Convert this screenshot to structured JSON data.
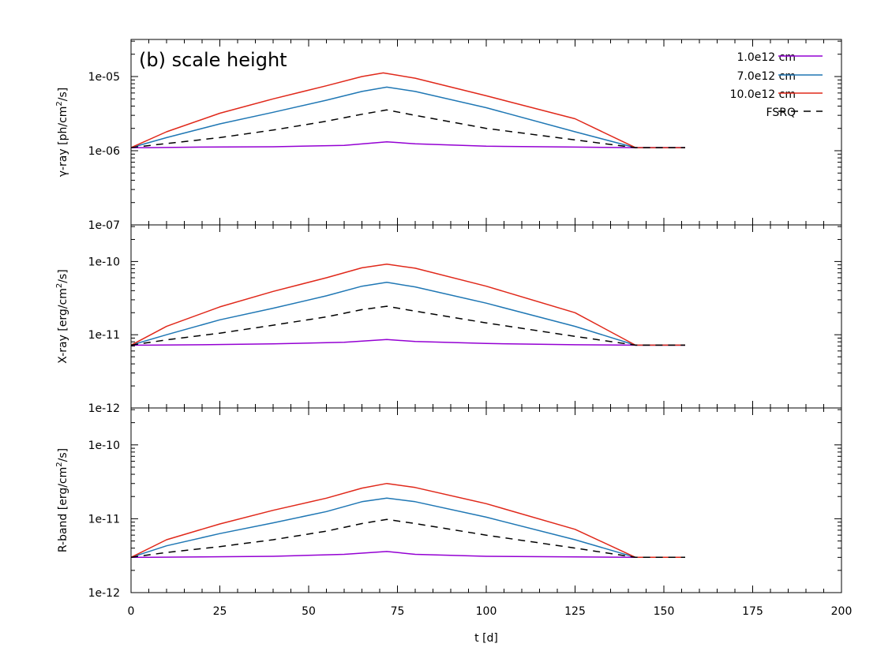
{
  "chart_data": {
    "type": "line",
    "annotation": "(b) scale height",
    "xlabel": "t [d]",
    "xlim": [
      0,
      200
    ],
    "xticks": [
      "0",
      "25",
      "50",
      "75",
      "100",
      "125",
      "150",
      "175",
      "200"
    ],
    "legend": {
      "position": "top-right",
      "entries": [
        {
          "label": "1.0e12 cm",
          "color": "#9400d3",
          "dash": "solid"
        },
        {
          "label": "7.0e12 cm",
          "color": "#1f77b4",
          "dash": "solid"
        },
        {
          "label": "10.0e12 cm",
          "color": "#e0281a",
          "dash": "solid"
        },
        {
          "label": "FSRQ",
          "color": "#000000",
          "dash": "dashed"
        }
      ]
    },
    "panels": [
      {
        "name": "gamma",
        "ylabel_main": "γ-ray [ph/cm",
        "ylabel_sup": "2",
        "ylabel_tail": "/s]",
        "ylim_exp": [
          -7,
          -4.5
        ],
        "yticks": [
          "1e-05",
          "1e-06",
          "1e-07"
        ],
        "series": [
          {
            "name": "1.0e12 cm",
            "t": [
              0,
              5,
              20,
              40,
              60,
              72,
              80,
              100,
              125,
              142,
              156
            ],
            "values": [
              1.1e-06,
              1.1e-06,
              1.12e-06,
              1.13e-06,
              1.18e-06,
              1.32e-06,
              1.24e-06,
              1.15e-06,
              1.12e-06,
              1.1e-06,
              1.1e-06
            ]
          },
          {
            "name": "7.0e12 cm",
            "t": [
              0,
              10,
              25,
              40,
              55,
              65,
              72,
              80,
              100,
              125,
              142,
              156
            ],
            "values": [
              1.1e-06,
              1.5e-06,
              2.3e-06,
              3.3e-06,
              4.8e-06,
              6.3e-06,
              7.2e-06,
              6.3e-06,
              3.8e-06,
              1.8e-06,
              1.1e-06,
              1.1e-06
            ]
          },
          {
            "name": "10.0e12 cm",
            "t": [
              0,
              10,
              25,
              40,
              55,
              65,
              71,
              80,
              100,
              125,
              142,
              156
            ],
            "values": [
              1.1e-06,
              1.8e-06,
              3.2e-06,
              5e-06,
              7.5e-06,
              1e-05,
              1.12e-05,
              9.5e-06,
              5.5e-06,
              2.7e-06,
              1.1e-06,
              1.1e-06
            ]
          },
          {
            "name": "FSRQ",
            "t": [
              0,
              10,
              25,
              40,
              55,
              65,
              72,
              80,
              100,
              125,
              142,
              156
            ],
            "values": [
              1.1e-06,
              1.25e-06,
              1.5e-06,
              1.9e-06,
              2.5e-06,
              3.1e-06,
              3.55e-06,
              3e-06,
              2e-06,
              1.4e-06,
              1.1e-06,
              1.1e-06
            ]
          }
        ]
      },
      {
        "name": "xray",
        "ylabel_main": "X-ray [erg/cm",
        "ylabel_sup": "2",
        "ylabel_tail": "/s]",
        "ylim_exp": [
          -12,
          -9.5
        ],
        "yticks": [
          "1e-10",
          "1e-11",
          "1e-12"
        ],
        "series": [
          {
            "name": "1.0e12 cm",
            "t": [
              0,
              5,
              20,
              40,
              60,
              72,
              80,
              100,
              125,
              142,
              156
            ],
            "values": [
              7.2e-12,
              7.2e-12,
              7.3e-12,
              7.5e-12,
              7.9e-12,
              8.6e-12,
              8.1e-12,
              7.6e-12,
              7.3e-12,
              7.2e-12,
              7.2e-12
            ]
          },
          {
            "name": "7.0e12 cm",
            "t": [
              0,
              10,
              25,
              40,
              55,
              65,
              72,
              80,
              100,
              125,
              142,
              156
            ],
            "values": [
              7.2e-12,
              1e-11,
              1.6e-11,
              2.3e-11,
              3.4e-11,
              4.6e-11,
              5.2e-11,
              4.5e-11,
              2.7e-11,
              1.3e-11,
              7.2e-12,
              7.2e-12
            ]
          },
          {
            "name": "10.0e12 cm",
            "t": [
              0,
              10,
              25,
              40,
              55,
              65,
              72,
              80,
              100,
              125,
              142,
              156
            ],
            "values": [
              7.2e-12,
              1.3e-11,
              2.4e-11,
              3.9e-11,
              6e-11,
              8.2e-11,
              9.2e-11,
              8.1e-11,
              4.6e-11,
              2e-11,
              7.2e-12,
              7.2e-12
            ]
          },
          {
            "name": "FSRQ",
            "t": [
              0,
              10,
              25,
              40,
              55,
              65,
              72,
              80,
              100,
              125,
              142,
              156
            ],
            "values": [
              7.2e-12,
              8.5e-12,
              1.05e-11,
              1.35e-11,
              1.75e-11,
              2.2e-11,
              2.45e-11,
              2.1e-11,
              1.45e-11,
              9.5e-12,
              7.2e-12,
              7.2e-12
            ]
          }
        ]
      },
      {
        "name": "rband",
        "ylabel_main": "R-band [erg/cm",
        "ylabel_sup": "2",
        "ylabel_tail": "/s]",
        "ylim_exp": [
          -12,
          -9.5
        ],
        "yticks": [
          "1e-10",
          "1e-11",
          "1e-12"
        ],
        "series": [
          {
            "name": "1.0e12 cm",
            "t": [
              0,
              5,
              20,
              40,
              60,
              72,
              80,
              100,
              125,
              142,
              156
            ],
            "values": [
              3e-12,
              3e-12,
              3.05e-12,
              3.1e-12,
              3.3e-12,
              3.6e-12,
              3.3e-12,
              3.1e-12,
              3.05e-12,
              3e-12,
              3e-12
            ]
          },
          {
            "name": "7.0e12 cm",
            "t": [
              0,
              10,
              25,
              40,
              55,
              65,
              72,
              80,
              100,
              125,
              142,
              156
            ],
            "values": [
              3e-12,
              4.3e-12,
              6.3e-12,
              8.8e-12,
              1.25e-11,
              1.7e-11,
              1.9e-11,
              1.7e-11,
              1.05e-11,
              5.2e-12,
              3e-12,
              3e-12
            ]
          },
          {
            "name": "10.0e12 cm",
            "t": [
              0,
              10,
              25,
              40,
              55,
              65,
              72,
              80,
              100,
              125,
              142,
              156
            ],
            "values": [
              3e-12,
              5.2e-12,
              8.5e-12,
              1.3e-11,
              1.9e-11,
              2.6e-11,
              3e-11,
              2.65e-11,
              1.6e-11,
              7.2e-12,
              3e-12,
              3e-12
            ]
          },
          {
            "name": "FSRQ",
            "t": [
              0,
              10,
              25,
              40,
              55,
              65,
              72,
              80,
              100,
              125,
              142,
              156
            ],
            "values": [
              3e-12,
              3.5e-12,
              4.2e-12,
              5.2e-12,
              6.8e-12,
              8.6e-12,
              9.8e-12,
              8.6e-12,
              6e-12,
              4e-12,
              3e-12,
              3e-12
            ]
          }
        ]
      }
    ]
  }
}
